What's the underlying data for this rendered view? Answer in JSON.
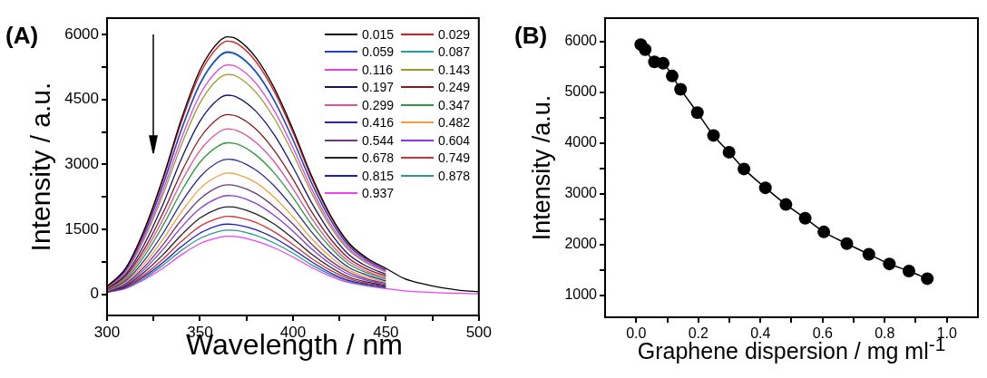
{
  "chart_data": [
    {
      "type": "line",
      "title": "(A)",
      "xlabel": "Wavelength / nm",
      "ylabel": "Intensity / a.u.",
      "legend": "top right",
      "xlim": [
        300,
        500
      ],
      "ylim": [
        -490,
        6380
      ],
      "xticks": [
        300,
        {
          "value": 325,
          "label": null
        },
        350,
        {
          "value": 375,
          "label": null
        },
        400,
        {
          "value": 425,
          "label": null
        },
        450,
        {
          "value": 475,
          "label": null
        },
        500
      ],
      "yticks": [
        0,
        {
          "value": 750,
          "label": null
        },
        1500,
        {
          "value": 2250,
          "label": null
        },
        3000,
        {
          "value": 3750,
          "label": null
        },
        4500,
        {
          "value": 5250,
          "label": null
        },
        6000
      ],
      "x": [
        300,
        310,
        320,
        330,
        340,
        350,
        360,
        365,
        370,
        380,
        390,
        400,
        410,
        420,
        430,
        440,
        450,
        460,
        470,
        480,
        490,
        500
      ],
      "series": [
        {
          "name": "0.015",
          "color": "#000000",
          "values": [
            180,
            600,
            1490,
            2680,
            4050,
            5180,
            5830,
            5950,
            5890,
            5470,
            4760,
            3810,
            2740,
            1840,
            1190,
            830,
            600,
            360,
            240,
            150,
            90,
            60
          ]
        },
        {
          "name": "0.029",
          "color": "#e31a1c",
          "values": [
            180,
            590,
            1460,
            2630,
            3980,
            5090,
            5730,
            5850,
            5790,
            5380,
            4680,
            3740,
            2690,
            1810,
            1170,
            820,
            590,
            null,
            null,
            null,
            null,
            null
          ]
        },
        {
          "name": "0.059",
          "color": "#2040d0",
          "values": [
            170,
            560,
            1400,
            2520,
            3810,
            4870,
            5490,
            5600,
            5540,
            5150,
            4480,
            3580,
            2580,
            1740,
            1120,
            780,
            560,
            null,
            null,
            null,
            null,
            null
          ]
        },
        {
          "name": "0.087",
          "color": "#20a0a0",
          "values": [
            null,
            null,
            1400,
            2510,
            3790,
            4850,
            5470,
            5580,
            5520,
            5130,
            4460,
            3570,
            2570,
            1730,
            1120,
            780,
            null,
            null,
            null,
            null,
            null,
            null
          ]
        },
        {
          "name": "0.116",
          "color": "#e040e0",
          "values": [
            160,
            530,
            1330,
            2390,
            3600,
            4610,
            5190,
            5300,
            5250,
            4880,
            4240,
            3390,
            2440,
            1640,
            1060,
            740,
            530,
            null,
            null,
            null,
            null,
            null
          ]
        },
        {
          "name": "0.143",
          "color": "#9a9a2a",
          "values": [
            150,
            510,
            1270,
            2290,
            3450,
            4420,
            4980,
            5080,
            5030,
            4670,
            4060,
            3250,
            2340,
            1570,
            1020,
            710,
            510,
            null,
            null,
            null,
            null,
            null
          ]
        },
        {
          "name": "0.197",
          "color": "#141470",
          "values": [
            140,
            460,
            1150,
            2070,
            3130,
            4000,
            4510,
            4600,
            4550,
            4230,
            3680,
            2940,
            2120,
            1430,
            920,
            640,
            460,
            null,
            null,
            null,
            null,
            null
          ]
        },
        {
          "name": "0.249",
          "color": "#8b1a1a",
          "values": [
            120,
            420,
            1040,
            1870,
            2820,
            3610,
            4070,
            4150,
            4110,
            3820,
            3320,
            2660,
            1910,
            1290,
            830,
            580,
            420,
            null,
            null,
            null,
            null,
            null
          ]
        },
        {
          "name": "0.299",
          "color": "#e0509a",
          "values": [
            110,
            380,
            960,
            1720,
            2600,
            3320,
            3740,
            3820,
            3780,
            3510,
            3060,
            2440,
            1760,
            1180,
            760,
            530,
            380,
            null,
            null,
            null,
            null,
            null
          ]
        },
        {
          "name": "0.347",
          "color": "#2a9a3a",
          "values": [
            110,
            350,
            880,
            1580,
            2380,
            3050,
            3430,
            3500,
            3470,
            3220,
            2800,
            2240,
            1610,
            1090,
            700,
            490,
            350,
            null,
            null,
            null,
            null,
            null
          ]
        },
        {
          "name": "0.416",
          "color": "#2a2a9a",
          "values": [
            90,
            310,
            780,
            1400,
            2120,
            2710,
            3060,
            3120,
            3090,
            2870,
            2500,
            2000,
            1440,
            970,
            620,
            440,
            310,
            null,
            null,
            null,
            null,
            null
          ]
        },
        {
          "name": "0.482",
          "color": "#f0a040",
          "values": [
            80,
            280,
            700,
            1260,
            1900,
            2440,
            2740,
            2800,
            2770,
            2580,
            2240,
            1790,
            1290,
            870,
            560,
            390,
            280,
            null,
            null,
            null,
            null,
            null
          ]
        },
        {
          "name": "0.544",
          "color": "#6a3a7a",
          "values": [
            80,
            250,
            630,
            1140,
            1720,
            2200,
            2480,
            2530,
            2500,
            2330,
            2020,
            1620,
            1160,
            780,
            510,
            350,
            250,
            null,
            null,
            null,
            null,
            null
          ]
        },
        {
          "name": "0.604",
          "color": "#8a3ae0",
          "values": [
            70,
            230,
            570,
            1030,
            1550,
            1980,
            2230,
            2280,
            2260,
            2100,
            1820,
            1460,
            1050,
            710,
            460,
            320,
            230,
            null,
            null,
            null,
            null,
            null
          ]
        },
        {
          "name": "0.678",
          "color": "#222222",
          "values": [
            60,
            200,
            510,
            910,
            1370,
            1760,
            1980,
            2020,
            2000,
            1860,
            1620,
            1290,
            930,
            630,
            400,
            280,
            200,
            null,
            null,
            null,
            null,
            null
          ]
        },
        {
          "name": "0.749",
          "color": "#d83030",
          "values": [
            50,
            180,
            450,
            810,
            1220,
            1570,
            1760,
            1800,
            1780,
            1660,
            1440,
            1150,
            830,
            560,
            360,
            250,
            180,
            null,
            null,
            null,
            null,
            null
          ]
        },
        {
          "name": "0.815",
          "color": "#1a1ad0",
          "values": [
            50,
            160,
            410,
            730,
            1100,
            1410,
            1590,
            1620,
            1600,
            1490,
            1300,
            1040,
            750,
            500,
            320,
            230,
            160,
            null,
            null,
            null,
            null,
            null
          ]
        },
        {
          "name": "0.878",
          "color": "#2a9a8a",
          "values": [
            40,
            150,
            370,
            670,
            1010,
            1290,
            1450,
            1480,
            1470,
            1360,
            1180,
            950,
            680,
            460,
            300,
            210,
            150,
            null,
            null,
            null,
            null,
            null
          ]
        },
        {
          "name": "0.937",
          "color": "#f040f0",
          "values": [
            40,
            130,
            340,
            600,
            910,
            1170,
            1310,
            1340,
            1330,
            1230,
            1070,
            860,
            620,
            420,
            270,
            190,
            130,
            80,
            50,
            30,
            20,
            10
          ]
        }
      ]
    },
    {
      "type": "line",
      "title": "(B)",
      "xlabel": "Graphene dispersion / mg ml$^{-1}$",
      "ylabel": "Intensity /a.u.",
      "legend": false,
      "marker": "circle",
      "xlim": [
        -0.1,
        1.1
      ],
      "ylim": [
        570,
        6460
      ],
      "xticks": [
        {
          "value": 0,
          "label": "0.0"
        },
        {
          "value": 0.1,
          "label": null
        },
        {
          "value": 0.2,
          "label": "0.2"
        },
        {
          "value": 0.3,
          "label": null
        },
        {
          "value": 0.4,
          "label": "0.4"
        },
        {
          "value": 0.5,
          "label": null
        },
        {
          "value": 0.6,
          "label": "0.6"
        },
        {
          "value": 0.7,
          "label": null
        },
        {
          "value": 0.8,
          "label": "0.8"
        },
        {
          "value": 0.9,
          "label": null
        },
        {
          "value": 1,
          "label": "1.0"
        }
      ],
      "yticks": [
        1000,
        {
          "value": 1500,
          "label": null
        },
        2000,
        {
          "value": 2500,
          "label": null
        },
        3000,
        {
          "value": 3500,
          "label": null
        },
        4000,
        {
          "value": 4500,
          "label": null
        },
        5000,
        {
          "value": 5500,
          "label": null
        },
        6000
      ],
      "x": [
        0.015,
        0.029,
        0.059,
        0.087,
        0.116,
        0.143,
        0.197,
        0.249,
        0.299,
        0.347,
        0.416,
        0.482,
        0.544,
        0.604,
        0.678,
        0.749,
        0.815,
        0.878,
        0.937
      ],
      "series": [
        {
          "color": "#000000",
          "values": [
            5940,
            5840,
            5600,
            5570,
            5320,
            5060,
            4600,
            4150,
            3820,
            3490,
            3120,
            2790,
            2520,
            2250,
            2020,
            1810,
            1620,
            1480,
            1330
          ]
        }
      ]
    }
  ]
}
